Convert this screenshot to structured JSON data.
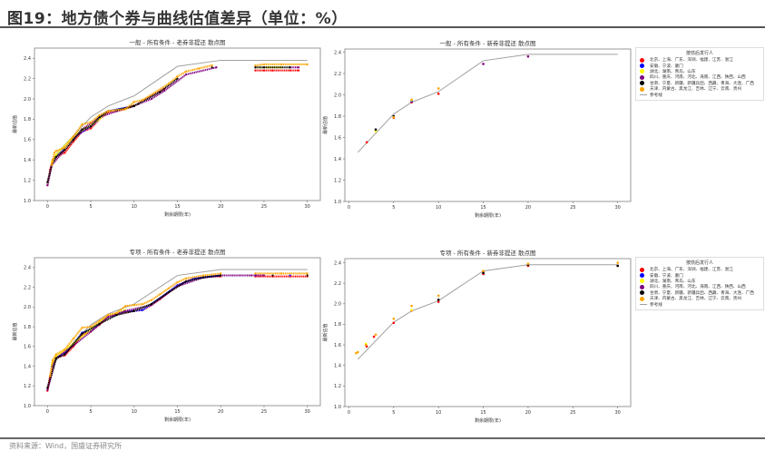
{
  "figure": {
    "title": "图19：地方债个券与曲线估值差异（单位：%）",
    "source": "资料来源：Wind，国盛证券研究所"
  },
  "legend": {
    "title": "按债后发行人",
    "items": [
      {
        "label": "北京、上海、广东、深圳、福建、江苏、浙江",
        "color": "#ff0000"
      },
      {
        "label": "安徽、宁波、厦门",
        "color": "#0000ff"
      },
      {
        "label": "湖北、湖南、青岛、山东",
        "color": "#ffff00"
      },
      {
        "label": "四川、重庆、河南、河北、海南、江西、陕西、山西",
        "color": "#800080"
      },
      {
        "label": "甘肃、宁夏、新疆、新疆兵团、西藏、青海、大连、广西",
        "color": "#000000"
      },
      {
        "label": "天津、内蒙古、黑龙江、吉林、辽宁、云南、贵州",
        "color": "#ffa500"
      }
    ],
    "reference_label": "参考线",
    "reference_color": "#a0a0a0"
  },
  "chart_data": [
    {
      "type": "scatter",
      "title": "一般 - 所有条件 - 老券非提还 散点图",
      "xlabel": "剩余期限(年)",
      "ylabel": "最新估值",
      "xlim": [
        -1.5,
        31.5
      ],
      "ylim": [
        1.0,
        2.5
      ],
      "xticks": [
        0,
        5,
        10,
        15,
        20,
        25,
        30
      ],
      "yticks": [
        "1.0",
        "1.2",
        "1.4",
        "1.6",
        "1.8",
        "2.0",
        "2.2",
        "2.4"
      ],
      "grid": false,
      "legend": "none",
      "reference": [
        [
          1,
          1.46
        ],
        [
          5,
          1.82
        ],
        [
          7,
          1.93
        ],
        [
          10,
          2.03
        ],
        [
          15,
          2.32
        ],
        [
          20,
          2.38
        ],
        [
          30,
          2.38
        ]
      ],
      "series": [
        [
          [
            0,
            1.15
          ],
          [
            0.3,
            1.3
          ],
          [
            0.6,
            1.4
          ],
          [
            1,
            1.43
          ],
          [
            2,
            1.47
          ],
          [
            3,
            1.58
          ],
          [
            4,
            1.68
          ],
          [
            5,
            1.71
          ],
          [
            6,
            1.8
          ],
          [
            7,
            1.87
          ],
          [
            8,
            1.88
          ],
          [
            9,
            1.9
          ],
          [
            10,
            1.93
          ],
          [
            13.5,
            2.1
          ],
          [
            24,
            2.28
          ],
          [
            25,
            2.28
          ],
          [
            26,
            2.28
          ],
          [
            28,
            2.28
          ],
          [
            29,
            2.28
          ]
        ],
        [
          [
            0.8,
            1.42
          ],
          [
            3,
            1.62
          ],
          [
            5,
            1.73
          ],
          [
            7,
            1.88
          ],
          [
            10,
            1.93
          ]
        ],
        [
          [
            0.5,
            1.38
          ],
          [
            1,
            1.45
          ],
          [
            3,
            1.63
          ],
          [
            4.5,
            1.72
          ],
          [
            6,
            1.8
          ],
          [
            7,
            1.88
          ],
          [
            9,
            1.9
          ],
          [
            10,
            1.94
          ],
          [
            24,
            2.31
          ],
          [
            25.5,
            2.31
          ],
          [
            27,
            2.31
          ]
        ],
        [
          [
            0,
            1.15
          ],
          [
            0.5,
            1.35
          ],
          [
            2,
            1.5
          ],
          [
            4,
            1.7
          ],
          [
            6,
            1.82
          ],
          [
            8,
            1.88
          ],
          [
            10.5,
            1.95
          ],
          [
            12,
            2.0
          ],
          [
            13.5,
            2.08
          ],
          [
            16,
            2.24
          ],
          [
            19.5,
            2.31
          ],
          [
            24,
            2.31
          ],
          [
            28,
            2.31
          ],
          [
            29,
            2.31
          ]
        ],
        [
          [
            0,
            1.18
          ],
          [
            0.5,
            1.35
          ],
          [
            1,
            1.43
          ],
          [
            2,
            1.5
          ],
          [
            3,
            1.6
          ],
          [
            4,
            1.7
          ],
          [
            5,
            1.73
          ],
          [
            6,
            1.82
          ],
          [
            7,
            1.88
          ],
          [
            8,
            1.89
          ],
          [
            10,
            1.93
          ],
          [
            13,
            2.07
          ],
          [
            15,
            2.2
          ],
          [
            19,
            2.31
          ],
          [
            24,
            2.31
          ],
          [
            25,
            2.31
          ],
          [
            28,
            2.31
          ]
        ],
        [
          [
            0.5,
            1.35
          ],
          [
            0.8,
            1.47
          ],
          [
            1,
            1.49
          ],
          [
            2,
            1.52
          ],
          [
            3,
            1.63
          ],
          [
            4,
            1.75
          ],
          [
            5,
            1.77
          ],
          [
            6,
            1.84
          ],
          [
            7,
            1.88
          ],
          [
            9,
            1.9
          ],
          [
            10,
            1.97
          ],
          [
            11,
            1.99
          ],
          [
            14,
            2.15
          ],
          [
            15,
            2.22
          ],
          [
            16,
            2.27
          ],
          [
            17.5,
            2.3
          ],
          [
            19,
            2.33
          ],
          [
            24,
            2.33
          ],
          [
            25,
            2.34
          ],
          [
            27,
            2.34
          ],
          [
            30,
            2.34
          ]
        ]
      ]
    },
    {
      "type": "scatter",
      "title": "一般 - 所有条件 - 新券非提还 散点图",
      "xlabel": "剩余期限(年)",
      "ylabel": "最新估值",
      "xlim": [
        -0.45,
        31.45
      ],
      "ylim": [
        1.0,
        2.43
      ],
      "xticks": [
        0,
        5,
        10,
        15,
        20,
        25,
        30
      ],
      "yticks": [
        "1.0",
        "1.2",
        "1.4",
        "1.6",
        "1.8",
        "2.0",
        "2.2",
        "2.4"
      ],
      "grid": false,
      "legend": "right",
      "reference": [
        [
          1,
          1.46
        ],
        [
          5,
          1.82
        ],
        [
          7,
          1.93
        ],
        [
          10,
          2.03
        ],
        [
          15,
          2.32
        ],
        [
          20,
          2.38
        ],
        [
          30,
          2.38
        ]
      ],
      "series": [
        [
          [
            2,
            1.555
          ],
          [
            5,
            1.785
          ],
          [
            7,
            1.93
          ],
          [
            10,
            2.01
          ]
        ],
        [
          [
            7,
            1.94
          ]
        ],
        [
          [
            3,
            1.66
          ],
          [
            7,
            1.95
          ]
        ],
        [
          [
            15,
            2.29
          ],
          [
            20,
            2.36
          ]
        ],
        [
          [
            3,
            1.675
          ],
          [
            5,
            1.8
          ]
        ],
        [
          [
            5,
            1.79
          ],
          [
            7,
            1.955
          ],
          [
            10,
            2.06
          ]
        ]
      ]
    },
    {
      "type": "scatter",
      "title": "专项 - 所有条件 - 老券非提还 散点图",
      "xlabel": "剩余期限(年)",
      "ylabel": "最新估值",
      "xlim": [
        -1.5,
        31.5
      ],
      "ylim": [
        1.0,
        2.5
      ],
      "xticks": [
        0,
        5,
        10,
        15,
        20,
        25,
        30
      ],
      "yticks": [
        "1.0",
        "1.2",
        "1.4",
        "1.6",
        "1.8",
        "2.0",
        "2.2",
        "2.4"
      ],
      "grid": false,
      "legend": "none",
      "reference": [
        [
          1,
          1.46
        ],
        [
          5,
          1.82
        ],
        [
          7,
          1.93
        ],
        [
          10,
          2.03
        ],
        [
          15,
          2.32
        ],
        [
          20,
          2.38
        ],
        [
          30,
          2.38
        ]
      ],
      "series": [
        [
          [
            0,
            1.15
          ],
          [
            0.3,
            1.3
          ],
          [
            0.6,
            1.42
          ],
          [
            1,
            1.48
          ],
          [
            1.5,
            1.5
          ],
          [
            2,
            1.51
          ],
          [
            3,
            1.6
          ],
          [
            4,
            1.72
          ],
          [
            5,
            1.75
          ],
          [
            6,
            1.82
          ],
          [
            7,
            1.9
          ],
          [
            8,
            1.92
          ],
          [
            9,
            1.95
          ],
          [
            10,
            1.96
          ],
          [
            11,
            1.97
          ],
          [
            12,
            2.02
          ],
          [
            13,
            2.08
          ],
          [
            14,
            2.15
          ],
          [
            15,
            2.21
          ],
          [
            16,
            2.26
          ],
          [
            17,
            2.29
          ],
          [
            18,
            2.3
          ],
          [
            19,
            2.31
          ],
          [
            20,
            2.31
          ],
          [
            24,
            2.31
          ],
          [
            26,
            2.31
          ],
          [
            28,
            2.31
          ],
          [
            30,
            2.31
          ]
        ],
        [
          [
            0.5,
            1.4
          ],
          [
            1,
            1.49
          ],
          [
            2,
            1.53
          ],
          [
            3,
            1.62
          ],
          [
            4,
            1.74
          ],
          [
            5,
            1.76
          ],
          [
            6,
            1.83
          ],
          [
            7,
            1.9
          ],
          [
            8,
            1.92
          ],
          [
            9,
            1.96
          ],
          [
            10,
            1.96
          ],
          [
            11,
            1.97
          ],
          [
            13,
            2.09
          ],
          [
            15,
            2.22
          ],
          [
            17,
            2.29
          ],
          [
            20,
            2.32
          ],
          [
            24,
            2.32
          ],
          [
            28,
            2.32
          ]
        ],
        [
          [
            0.5,
            1.42
          ],
          [
            1,
            1.5
          ],
          [
            3,
            1.63
          ],
          [
            5,
            1.77
          ],
          [
            7,
            1.91
          ],
          [
            9,
            1.97
          ]
        ],
        [
          [
            0,
            1.16
          ],
          [
            1,
            1.48
          ],
          [
            3,
            1.61
          ],
          [
            5,
            1.75
          ],
          [
            7,
            1.9
          ],
          [
            9,
            1.96
          ],
          [
            12,
            2.02
          ],
          [
            15,
            2.21
          ],
          [
            18,
            2.3
          ],
          [
            20,
            2.32
          ],
          [
            23.5,
            2.32
          ],
          [
            25,
            2.32
          ]
        ],
        [
          [
            0,
            1.18
          ],
          [
            1,
            1.48
          ],
          [
            2,
            1.52
          ],
          [
            4,
            1.73
          ],
          [
            6,
            1.83
          ],
          [
            8,
            1.92
          ],
          [
            10,
            1.96
          ],
          [
            12,
            2.03
          ],
          [
            14,
            2.15
          ],
          [
            16,
            2.26
          ],
          [
            18,
            2.3
          ],
          [
            20,
            2.32
          ],
          [
            26,
            2.32
          ],
          [
            30,
            2.32
          ]
        ],
        [
          [
            0.3,
            1.3
          ],
          [
            0.6,
            1.46
          ],
          [
            1,
            1.52
          ],
          [
            2,
            1.57
          ],
          [
            3,
            1.68
          ],
          [
            4,
            1.79
          ],
          [
            5,
            1.8
          ],
          [
            6,
            1.86
          ],
          [
            7,
            1.92
          ],
          [
            8,
            1.94
          ],
          [
            9,
            2.01
          ],
          [
            10,
            2.02
          ],
          [
            11,
            2.03
          ],
          [
            12,
            2.07
          ],
          [
            13,
            2.13
          ],
          [
            14,
            2.19
          ],
          [
            15,
            2.25
          ],
          [
            16,
            2.29
          ],
          [
            18,
            2.32
          ],
          [
            20,
            2.34
          ],
          [
            24,
            2.34
          ],
          [
            27,
            2.34
          ],
          [
            30,
            2.34
          ]
        ]
      ]
    },
    {
      "type": "scatter",
      "title": "专项 - 所有条件 - 新券非提还 散点图",
      "xlabel": "剩余期限(年)",
      "ylabel": "最新估值",
      "xlim": [
        -0.45,
        31.45
      ],
      "ylim": [
        1.0,
        2.44
      ],
      "xticks": [
        0,
        5,
        10,
        15,
        20,
        25,
        30
      ],
      "yticks": [
        "1.0",
        "1.2",
        "1.4",
        "1.6",
        "1.8",
        "2.0",
        "2.2",
        "2.4"
      ],
      "grid": false,
      "legend": "right",
      "reference": [
        [
          1,
          1.46
        ],
        [
          5,
          1.82
        ],
        [
          7,
          1.93
        ],
        [
          10,
          2.03
        ],
        [
          15,
          2.32
        ],
        [
          20,
          2.38
        ],
        [
          30,
          2.38
        ]
      ],
      "series": [
        [
          [
            2,
            1.585
          ],
          [
            2.8,
            1.68
          ],
          [
            5,
            1.815
          ],
          [
            7,
            1.935
          ],
          [
            10,
            2.02
          ],
          [
            15,
            2.29
          ],
          [
            20,
            2.37
          ],
          [
            30,
            2.37
          ]
        ],
        [],
        [
          [
            1.9,
            1.61
          ],
          [
            7,
            1.94
          ]
        ],
        [
          [
            15,
            2.31
          ]
        ],
        [
          [
            10,
            2.04
          ],
          [
            15,
            2.3
          ],
          [
            20,
            2.38
          ],
          [
            30,
            2.37
          ]
        ],
        [
          [
            0.8,
            1.52
          ],
          [
            1,
            1.53
          ],
          [
            1.9,
            1.6
          ],
          [
            3,
            1.7
          ],
          [
            5,
            1.855
          ],
          [
            7,
            1.98
          ],
          [
            10,
            2.08
          ],
          [
            15,
            2.32
          ],
          [
            20,
            2.39
          ],
          [
            30,
            2.4
          ]
        ]
      ]
    }
  ]
}
